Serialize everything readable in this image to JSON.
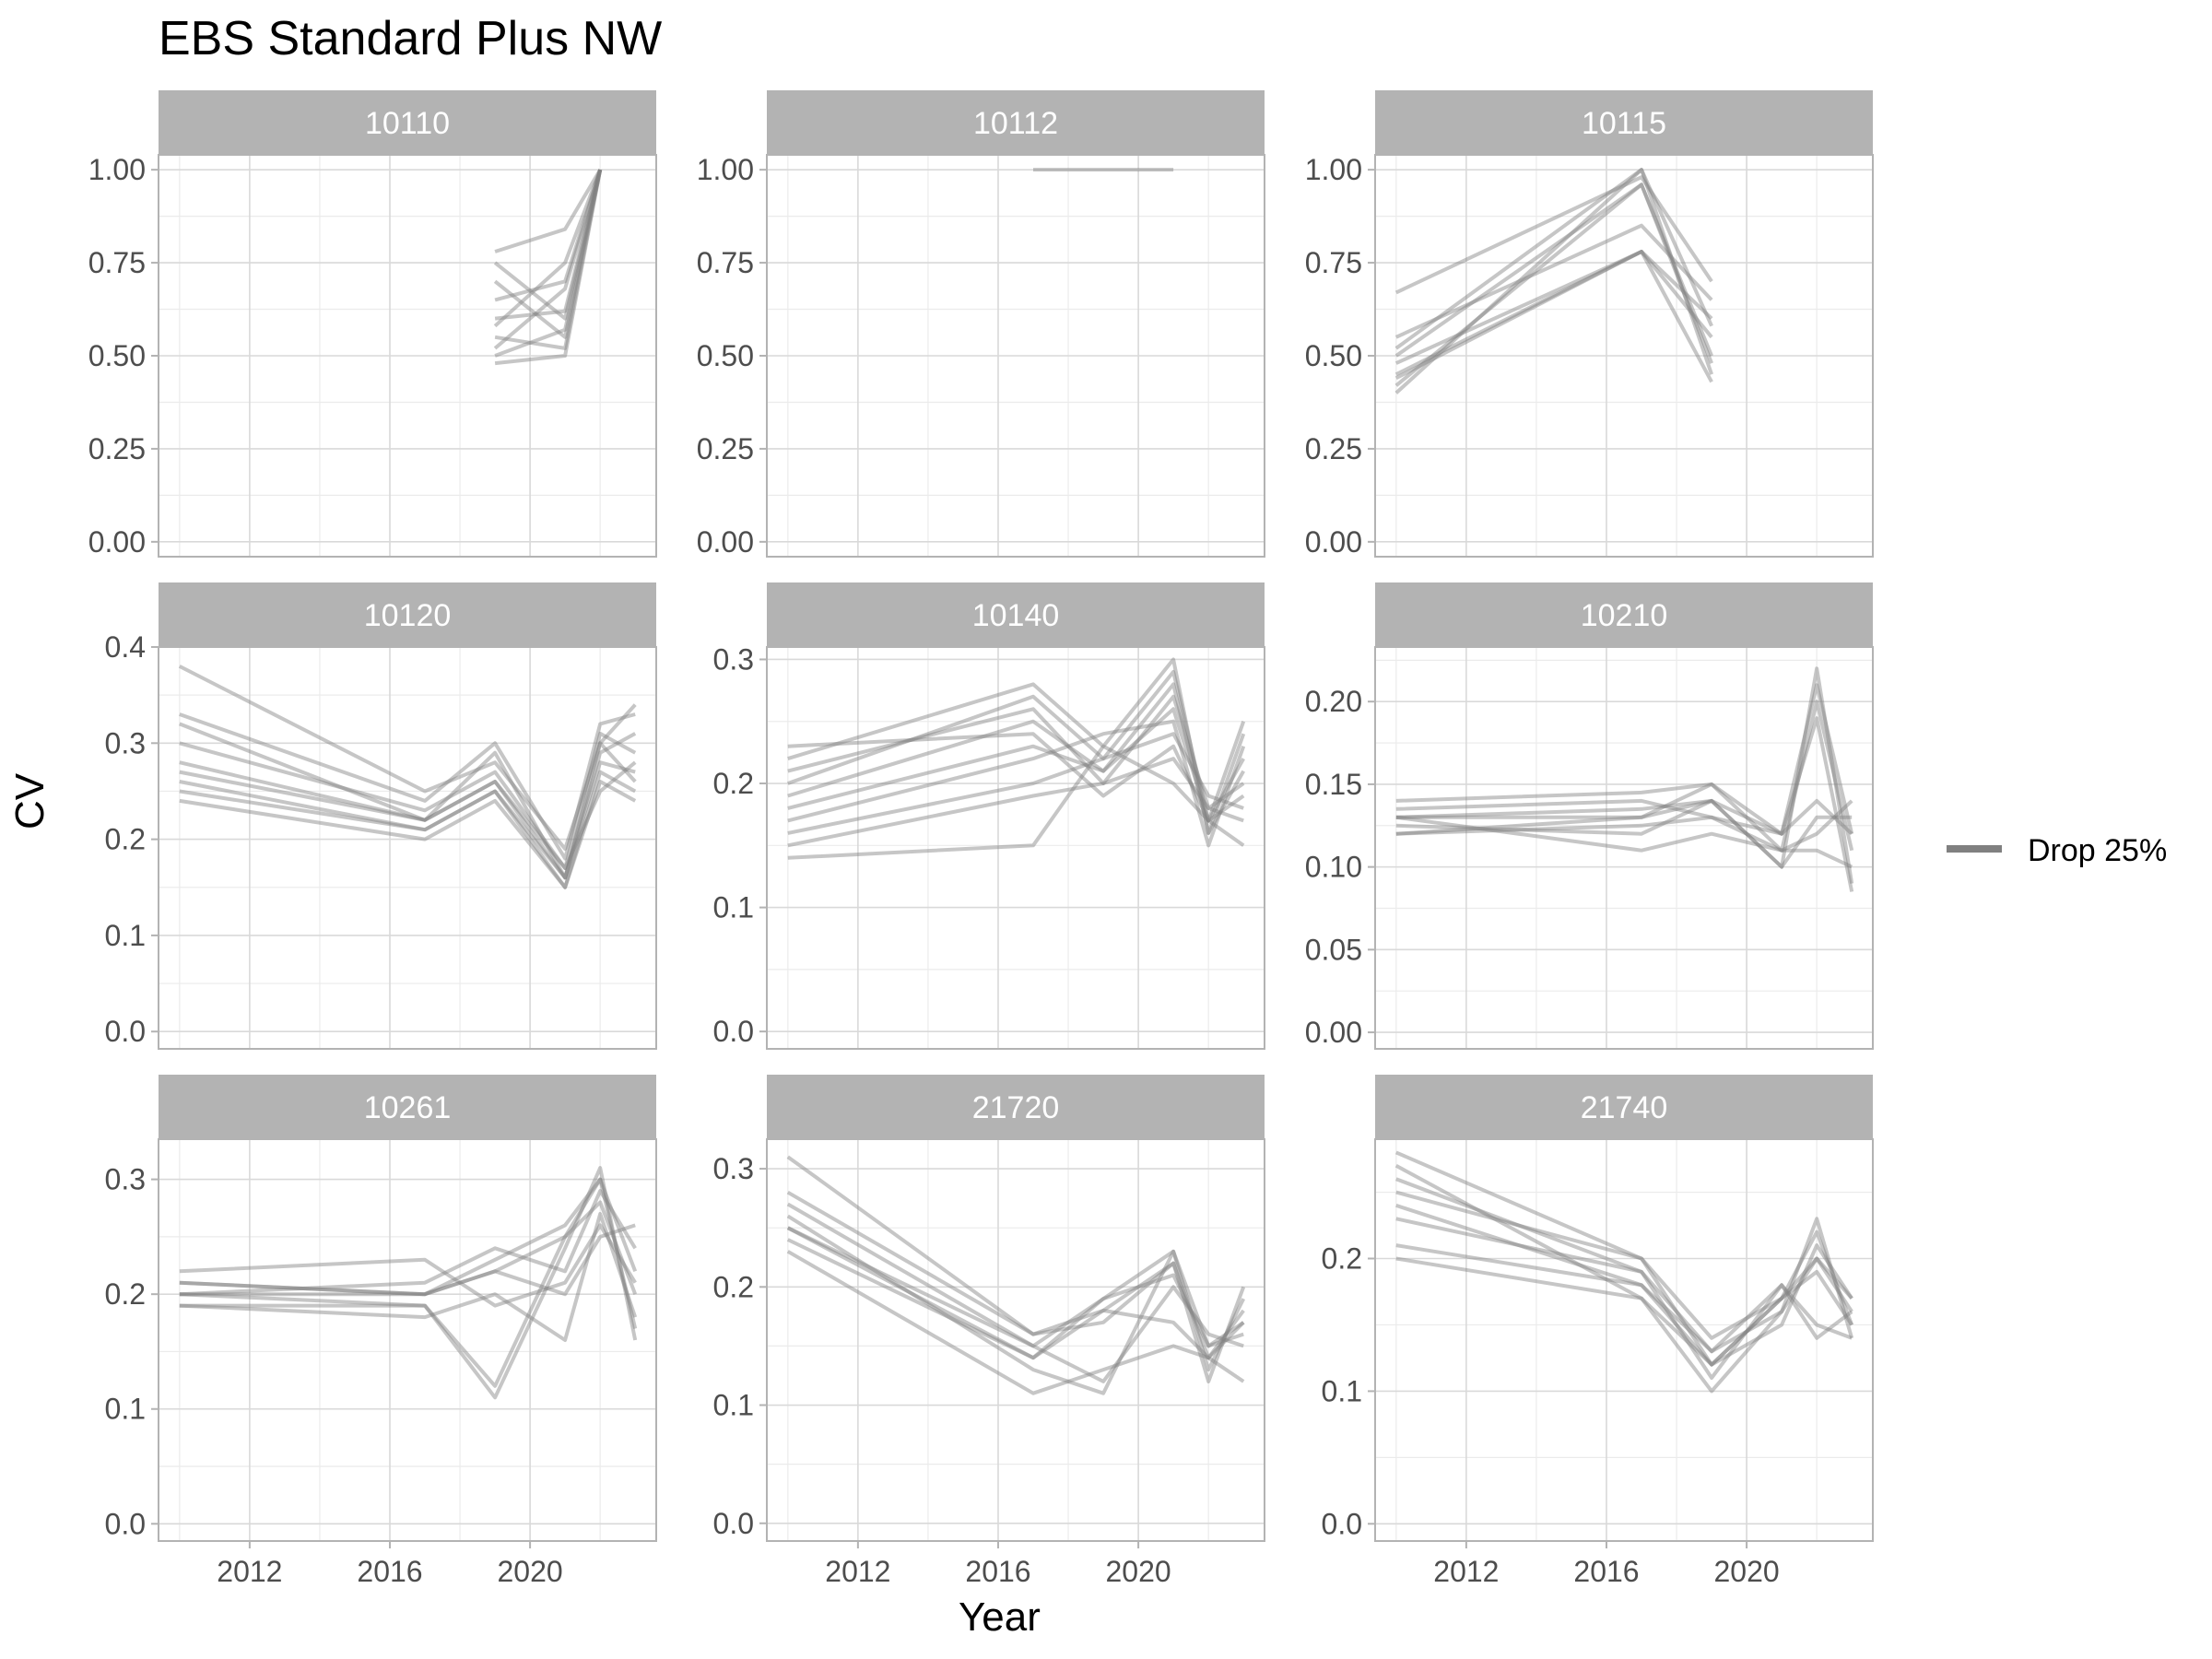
{
  "chart_data": {
    "type": "line",
    "title": "EBS Standard Plus NW",
    "xlabel": "Year",
    "ylabel": "CV",
    "xlim": [
      2009.4,
      2023.6
    ],
    "x_ticks": [
      2012,
      2016,
      2020
    ],
    "grid": true,
    "legend": {
      "position": "right",
      "entries": [
        {
          "label": "Drop 25%",
          "color": "#808080"
        }
      ]
    },
    "line_color": "#808080",
    "panels": [
      {
        "label": "10110",
        "ylim": [
          -0.04,
          1.04
        ],
        "y_ticks": [
          0,
          0.25,
          0.5,
          0.75,
          1.0
        ],
        "y_tick_labels": [
          "0.00",
          "0.25",
          "0.50",
          "0.75",
          "1.00"
        ],
        "x": [
          2019,
          2021,
          2022
        ],
        "series": [
          {
            "values": [
              0.48,
              0.5,
              1.0
            ]
          },
          {
            "values": [
              0.55,
              0.52,
              1.0
            ]
          },
          {
            "values": [
              0.6,
              0.62,
              1.0
            ]
          },
          {
            "values": [
              0.65,
              0.7,
              1.0
            ]
          },
          {
            "values": [
              0.7,
              0.55,
              1.0
            ]
          },
          {
            "values": [
              0.75,
              0.6,
              1.0
            ]
          },
          {
            "values": [
              0.52,
              0.68,
              1.0
            ]
          },
          {
            "values": [
              0.58,
              0.75,
              1.0
            ]
          },
          {
            "values": [
              0.78,
              0.84,
              1.0
            ]
          },
          {
            "values": [
              0.5,
              0.57,
              1.0
            ]
          }
        ]
      },
      {
        "label": "10112",
        "ylim": [
          -0.04,
          1.04
        ],
        "y_ticks": [
          0,
          0.25,
          0.5,
          0.75,
          1.0
        ],
        "y_tick_labels": [
          "0.00",
          "0.25",
          "0.50",
          "0.75",
          "1.00"
        ],
        "x": [
          2017,
          2021
        ],
        "series": [
          {
            "values": [
              1.0,
              1.0
            ]
          }
        ]
      },
      {
        "label": "10115",
        "ylim": [
          -0.04,
          1.04
        ],
        "y_ticks": [
          0,
          0.25,
          0.5,
          0.75,
          1.0
        ],
        "y_tick_labels": [
          "0.00",
          "0.25",
          "0.50",
          "0.75",
          "1.00"
        ],
        "x": [
          2010,
          2017,
          2019
        ],
        "series": [
          {
            "values": [
              0.4,
              1.0,
              0.45
            ]
          },
          {
            "values": [
              0.42,
              0.96,
              0.5
            ]
          },
          {
            "values": [
              0.45,
              0.78,
              0.55
            ]
          },
          {
            "values": [
              0.48,
              0.78,
              0.6
            ]
          },
          {
            "values": [
              0.5,
              0.96,
              0.48
            ]
          },
          {
            "values": [
              0.55,
              0.85,
              0.65
            ]
          },
          {
            "values": [
              0.67,
              0.98,
              0.7
            ]
          },
          {
            "values": [
              0.44,
              0.78,
              0.43
            ]
          },
          {
            "values": [
              0.52,
              1.0,
              0.58
            ]
          }
        ]
      },
      {
        "label": "10120",
        "ylim": [
          -0.018,
          0.4
        ],
        "y_ticks": [
          0,
          0.1,
          0.2,
          0.3,
          0.4
        ],
        "y_tick_labels": [
          "0.0",
          "0.1",
          "0.2",
          "0.3",
          "0.4"
        ],
        "x": [
          2010,
          2017,
          2019,
          2021,
          2022,
          2023
        ],
        "series": [
          {
            "values": [
              0.24,
              0.2,
              0.24,
              0.15,
              0.27,
              0.25
            ]
          },
          {
            "values": [
              0.26,
              0.21,
              0.25,
              0.16,
              0.3,
              0.26
            ]
          },
          {
            "values": [
              0.28,
              0.22,
              0.26,
              0.16,
              0.28,
              0.27
            ]
          },
          {
            "values": [
              0.3,
              0.23,
              0.27,
              0.17,
              0.31,
              0.29
            ]
          },
          {
            "values": [
              0.32,
              0.22,
              0.29,
              0.16,
              0.29,
              0.31
            ]
          },
          {
            "values": [
              0.33,
              0.24,
              0.3,
              0.18,
              0.32,
              0.33
            ]
          },
          {
            "values": [
              0.25,
              0.21,
              0.25,
              0.15,
              0.26,
              0.24
            ]
          },
          {
            "values": [
              0.38,
              0.25,
              0.28,
              0.19,
              0.3,
              0.34
            ]
          },
          {
            "values": [
              0.27,
              0.22,
              0.26,
              0.17,
              0.25,
              0.28
            ]
          }
        ]
      },
      {
        "label": "10140",
        "ylim": [
          -0.014,
          0.31
        ],
        "y_ticks": [
          0,
          0.1,
          0.2,
          0.3
        ],
        "y_tick_labels": [
          "0.0",
          "0.1",
          "0.2",
          "0.3"
        ],
        "x": [
          2010,
          2017,
          2019,
          2021,
          2022,
          2023
        ],
        "series": [
          {
            "values": [
              0.19,
              0.25,
              0.21,
              0.28,
              0.16,
              0.21
            ]
          },
          {
            "values": [
              0.2,
              0.27,
              0.22,
              0.29,
              0.17,
              0.22
            ]
          },
          {
            "values": [
              0.21,
              0.26,
              0.2,
              0.27,
              0.18,
              0.2
            ]
          },
          {
            "values": [
              0.22,
              0.28,
              0.23,
              0.3,
              0.16,
              0.24
            ]
          },
          {
            "values": [
              0.18,
              0.23,
              0.21,
              0.26,
              0.17,
              0.19
            ]
          },
          {
            "values": [
              0.16,
              0.2,
              0.22,
              0.24,
              0.19,
              0.18
            ]
          },
          {
            "values": [
              0.15,
              0.19,
              0.2,
              0.22,
              0.18,
              0.17
            ]
          },
          {
            "values": [
              0.14,
              0.15,
              0.23,
              0.2,
              0.17,
              0.15
            ]
          },
          {
            "values": [
              0.17,
              0.22,
              0.24,
              0.25,
              0.15,
              0.23
            ]
          },
          {
            "values": [
              0.23,
              0.24,
              0.19,
              0.23,
              0.17,
              0.25
            ]
          }
        ]
      },
      {
        "label": "10210",
        "ylim": [
          -0.01,
          0.233
        ],
        "y_ticks": [
          0,
          0.05,
          0.1,
          0.15,
          0.2
        ],
        "y_tick_labels": [
          "0.00",
          "0.05",
          "0.10",
          "0.15",
          "0.20"
        ],
        "x": [
          2010,
          2017,
          2019,
          2021,
          2022,
          2023
        ],
        "series": [
          {
            "values": [
              0.13,
              0.135,
              0.14,
              0.1,
              0.22,
              0.09
            ]
          },
          {
            "values": [
              0.12,
              0.13,
              0.15,
              0.11,
              0.2,
              0.11
            ]
          },
          {
            "values": [
              0.135,
              0.14,
              0.13,
              0.12,
              0.21,
              0.12
            ]
          },
          {
            "values": [
              0.125,
              0.12,
              0.14,
              0.1,
              0.13,
              0.13
            ]
          },
          {
            "values": [
              0.13,
              0.11,
              0.12,
              0.11,
              0.12,
              0.14
            ]
          },
          {
            "values": [
              0.14,
              0.145,
              0.15,
              0.12,
              0.14,
              0.12
            ]
          },
          {
            "values": [
              0.12,
              0.125,
              0.13,
              0.11,
              0.11,
              0.1
            ]
          },
          {
            "values": [
              0.13,
              0.13,
              0.14,
              0.12,
              0.19,
              0.085
            ]
          }
        ]
      },
      {
        "label": "10261",
        "ylim": [
          -0.015,
          0.335
        ],
        "y_ticks": [
          0,
          0.1,
          0.2,
          0.3
        ],
        "y_tick_labels": [
          "0.0",
          "0.1",
          "0.2",
          "0.3"
        ],
        "x": [
          2010,
          2017,
          2019,
          2021,
          2022,
          2023
        ],
        "series": [
          {
            "values": [
              0.19,
              0.19,
              0.11,
              0.24,
              0.31,
              0.16
            ]
          },
          {
            "values": [
              0.2,
              0.2,
              0.22,
              0.25,
              0.28,
              0.2
            ]
          },
          {
            "values": [
              0.21,
              0.2,
              0.23,
              0.26,
              0.3,
              0.22
            ]
          },
          {
            "values": [
              0.19,
              0.18,
              0.2,
              0.16,
              0.27,
              0.18
            ]
          },
          {
            "values": [
              0.2,
              0.21,
              0.24,
              0.22,
              0.29,
              0.24
            ]
          },
          {
            "values": [
              0.22,
              0.23,
              0.19,
              0.21,
              0.26,
              0.21
            ]
          },
          {
            "values": [
              0.2,
              0.19,
              0.12,
              0.25,
              0.3,
              0.17
            ]
          },
          {
            "values": [
              0.21,
              0.2,
              0.22,
              0.2,
              0.25,
              0.26
            ]
          }
        ]
      },
      {
        "label": "21720",
        "ylim": [
          -0.015,
          0.325
        ],
        "y_ticks": [
          0,
          0.1,
          0.2,
          0.3
        ],
        "y_tick_labels": [
          "0.0",
          "0.1",
          "0.2",
          "0.3"
        ],
        "x": [
          2010,
          2017,
          2019,
          2021,
          2022,
          2023
        ],
        "series": [
          {
            "values": [
              0.24,
              0.14,
              0.18,
              0.22,
              0.14,
              0.17
            ]
          },
          {
            "values": [
              0.25,
              0.15,
              0.19,
              0.21,
              0.15,
              0.16
            ]
          },
          {
            "values": [
              0.26,
              0.13,
              0.11,
              0.23,
              0.13,
              0.19
            ]
          },
          {
            "values": [
              0.27,
              0.15,
              0.12,
              0.2,
              0.16,
              0.15
            ]
          },
          {
            "values": [
              0.28,
              0.16,
              0.18,
              0.17,
              0.14,
              0.18
            ]
          },
          {
            "values": [
              0.31,
              0.16,
              0.17,
              0.22,
              0.12,
              0.2
            ]
          },
          {
            "values": [
              0.23,
              0.11,
              0.13,
              0.15,
              0.14,
              0.12
            ]
          },
          {
            "values": [
              0.25,
              0.14,
              0.19,
              0.23,
              0.15,
              0.17
            ]
          }
        ]
      },
      {
        "label": "21740",
        "ylim": [
          -0.013,
          0.29
        ],
        "y_ticks": [
          0,
          0.1,
          0.2
        ],
        "y_tick_labels": [
          "0.0",
          "0.1",
          "0.2"
        ],
        "x": [
          2010,
          2017,
          2019,
          2021,
          2022,
          2023
        ],
        "series": [
          {
            "values": [
              0.2,
              0.17,
              0.12,
              0.17,
              0.22,
              0.15
            ]
          },
          {
            "values": [
              0.21,
              0.18,
              0.13,
              0.16,
              0.2,
              0.16
            ]
          },
          {
            "values": [
              0.23,
              0.19,
              0.11,
              0.18,
              0.15,
              0.14
            ]
          },
          {
            "values": [
              0.24,
              0.18,
              0.12,
              0.15,
              0.21,
              0.17
            ]
          },
          {
            "values": [
              0.25,
              0.2,
              0.14,
              0.17,
              0.19,
              0.15
            ]
          },
          {
            "values": [
              0.26,
              0.19,
              0.13,
              0.18,
              0.14,
              0.16
            ]
          },
          {
            "values": [
              0.27,
              0.17,
              0.1,
              0.16,
              0.23,
              0.14
            ]
          },
          {
            "values": [
              0.28,
              0.2,
              0.12,
              0.17,
              0.2,
              0.17
            ]
          }
        ]
      }
    ]
  }
}
